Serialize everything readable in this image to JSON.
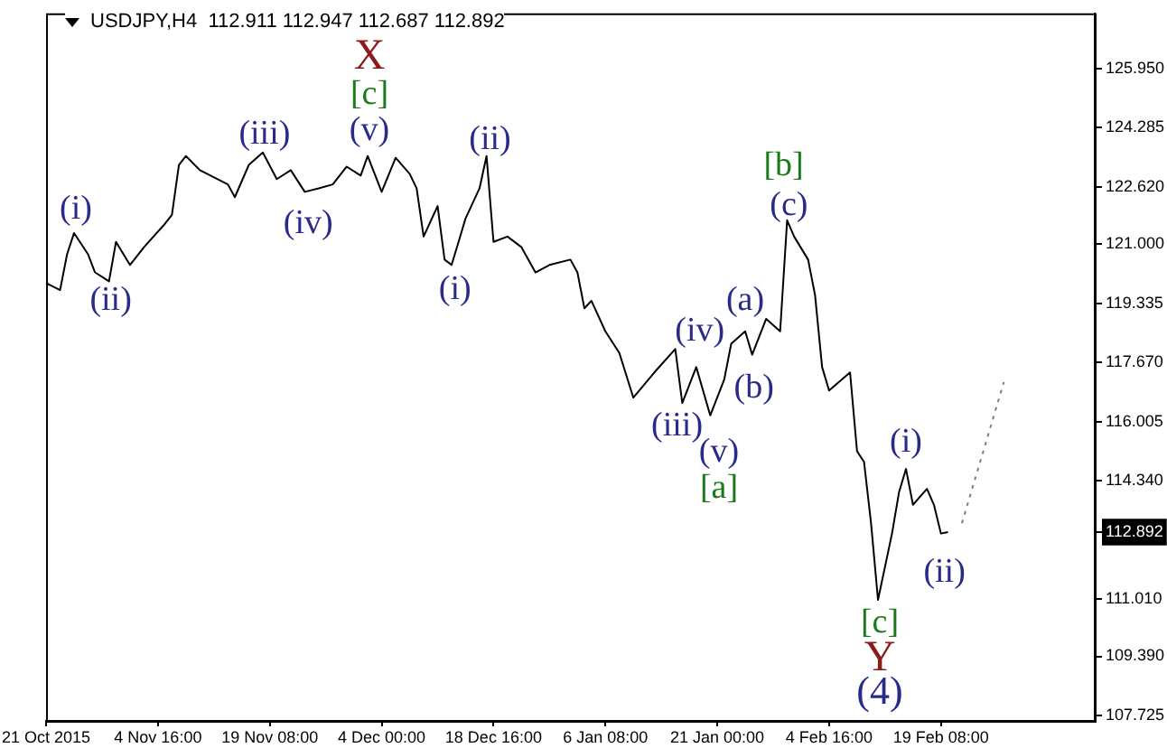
{
  "chart_data": {
    "type": "line",
    "title": "USDJPY,H4  112.911 112.947 112.687 112.892",
    "categories": [
      "21 Oct 2015",
      null,
      null,
      null,
      null,
      null,
      null,
      null,
      null,
      null,
      null,
      null,
      null,
      null,
      null,
      null,
      "4 Nov 16:00",
      null,
      null,
      null,
      null,
      null,
      null,
      null,
      null,
      null,
      null,
      null,
      null,
      null,
      null,
      null,
      "19 Nov 08:00",
      null,
      null,
      null,
      null,
      null,
      null,
      null,
      null,
      null,
      null,
      null,
      null,
      null,
      null,
      null,
      "4 Dec 00:00",
      null,
      null,
      null,
      null,
      null,
      null,
      null,
      null,
      null,
      null,
      null,
      null,
      null,
      null,
      null,
      "18 Dec 16:00",
      null,
      null,
      null,
      null,
      null,
      null,
      null,
      null,
      null,
      null,
      null,
      null,
      null,
      null,
      null,
      "6 Jan 08:00",
      null,
      null,
      null,
      null,
      null,
      null,
      null,
      null,
      null,
      null,
      null,
      null,
      null,
      null,
      null,
      "21 Jan 00:00",
      null,
      null,
      null,
      null,
      null,
      null,
      null,
      null,
      null,
      null,
      null,
      null,
      null,
      null,
      null,
      "4 Feb 16:00",
      null,
      null,
      null,
      null,
      null,
      null,
      null,
      null,
      null,
      null,
      null,
      null,
      null,
      null,
      null,
      "19 Feb 08:00",
      null,
      null,
      null,
      null,
      null,
      null,
      null,
      null,
      null,
      null,
      null,
      null,
      null,
      null,
      null,
      null,
      null,
      null,
      null,
      null,
      null,
      null
    ],
    "ylim": [
      107.57,
      127.51
    ],
    "yticks": [
      {
        "value": 107.725,
        "label": "107.725"
      },
      {
        "value": 109.39,
        "label": "109.390"
      },
      {
        "value": 111.01,
        "label": "111.010"
      },
      {
        "value": 112.892,
        "label": "112.892"
      },
      {
        "value": 114.34,
        "label": "114.340"
      },
      {
        "value": 116.005,
        "label": "116.005"
      },
      {
        "value": 117.67,
        "label": "117.670"
      },
      {
        "value": 119.335,
        "label": "119.335"
      },
      {
        "value": 121,
        "label": "121.000"
      },
      {
        "value": 122.62,
        "label": "122.620"
      },
      {
        "value": 124.285,
        "label": "124.285"
      },
      {
        "value": 125.95,
        "label": "125.950"
      }
    ],
    "grid": false,
    "legend": false,
    "marker": "none",
    "series": [
      {
        "color": "#000000",
        "line_style": "solid",
        "values": [
          119.91,
          null,
          119.71,
          120.72,
          121.32,
          null,
          120.72,
          120.21,
          null,
          119.96,
          121.07,
          null,
          120.42,
          null,
          120.92,
          null,
          null,
          121.58,
          121.83,
          123.24,
          123.49,
          null,
          123.09,
          null,
          null,
          null,
          122.69,
          122.33,
          null,
          123.24,
          null,
          123.59,
          null,
          122.84,
          null,
          123.09,
          null,
          122.48,
          null,
          122.58,
          null,
          122.69,
          null,
          123.19,
          null,
          122.94,
          123.49,
          null,
          122.48,
          null,
          123.44,
          null,
          122.99,
          122.58,
          121.22,
          null,
          122.08,
          120.57,
          120.42,
          121.07,
          121.73,
          null,
          122.58,
          123.49,
          121.07,
          null,
          121.22,
          null,
          120.92,
          null,
          120.21,
          null,
          120.42,
          null,
          null,
          120.57,
          120.21,
          119.2,
          119.41,
          null,
          118.55,
          null,
          117.94,
          null,
          116.68,
          null,
          null,
          117.39,
          null,
          null,
          118.05,
          116.53,
          null,
          117.54,
          null,
          116.18,
          null,
          117.19,
          118.2,
          null,
          118.55,
          117.89,
          null,
          118.9,
          null,
          118.55,
          121.68,
          121.22,
          null,
          120.57,
          119.56,
          117.54,
          116.88,
          null,
          null,
          117.39,
          115.17,
          114.87,
          113.15,
          110.98,
          null,
          112.85,
          114.01,
          114.67,
          113.66,
          null,
          114.11,
          113.66,
          112.85,
          112.89,
          null,
          null,
          null,
          null,
          null,
          null,
          null,
          null,
          null,
          null,
          null,
          null,
          null,
          null,
          null,
          null,
          null,
          null,
          null,
          null,
          null
        ]
      },
      {
        "color": "#808080",
        "line_style": "dotted",
        "values": [
          null,
          null,
          null,
          null,
          null,
          null,
          null,
          null,
          null,
          null,
          null,
          null,
          null,
          null,
          null,
          null,
          null,
          null,
          null,
          null,
          null,
          null,
          null,
          null,
          null,
          null,
          null,
          null,
          null,
          null,
          null,
          null,
          null,
          null,
          null,
          null,
          null,
          null,
          null,
          null,
          null,
          null,
          null,
          null,
          null,
          null,
          null,
          null,
          null,
          null,
          null,
          null,
          null,
          null,
          null,
          null,
          null,
          null,
          null,
          null,
          null,
          null,
          null,
          null,
          null,
          null,
          null,
          null,
          null,
          null,
          null,
          null,
          null,
          null,
          null,
          null,
          null,
          null,
          null,
          null,
          null,
          null,
          null,
          null,
          null,
          null,
          null,
          null,
          null,
          null,
          null,
          null,
          null,
          null,
          null,
          null,
          null,
          null,
          null,
          null,
          null,
          null,
          null,
          null,
          null,
          null,
          null,
          null,
          null,
          null,
          null,
          null,
          null,
          null,
          null,
          null,
          null,
          null,
          null,
          null,
          null,
          null,
          null,
          null,
          null,
          null,
          null,
          null,
          null,
          null,
          null,
          113.14,
          null,
          null,
          null,
          null,
          null,
          117.12,
          null,
          null,
          null,
          null,
          null,
          null,
          null,
          null,
          null,
          null,
          null,
          null,
          null
        ]
      }
    ],
    "annotations": [
      "(i)",
      "(ii)",
      "(iii)",
      "(iv)",
      "(v)",
      "[c]",
      "X",
      "(i)",
      "(ii)",
      "[b]",
      "(c)",
      "(a)",
      "(iv)",
      "(b)",
      "(iii)",
      "(v)",
      "[a]",
      "(i)",
      "(ii)",
      "[c]",
      "Y",
      "(4)"
    ]
  }
}
